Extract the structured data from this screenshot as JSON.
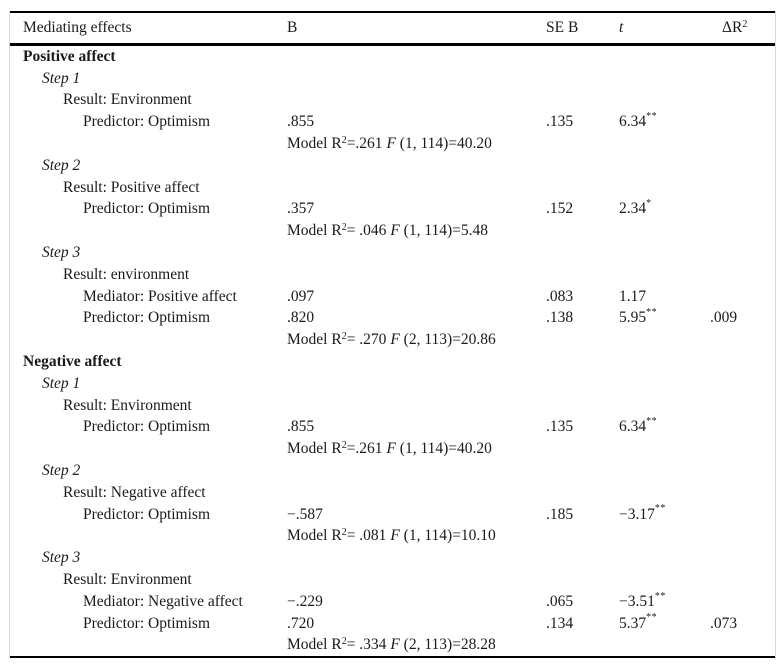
{
  "header": {
    "label": "Mediating effects",
    "b": "B",
    "se": "SE B",
    "t": "t",
    "dr2_base": "ΔR",
    "dr2_sup": "2"
  },
  "rows": [
    {
      "type": "section",
      "label": "Positive affect"
    },
    {
      "type": "step",
      "label": "Step 1"
    },
    {
      "type": "result",
      "label": "Result: Environment"
    },
    {
      "type": "data",
      "label": "Predictor: Optimism",
      "b": ".855",
      "se": ".135",
      "t": "6.34",
      "t_sup": "**",
      "dr2": ""
    },
    {
      "type": "model",
      "pre": "Model R",
      "sup": "2",
      "eq": "=.261 ",
      "f": "F",
      "tail": " (1, 114)=40.20"
    },
    {
      "type": "step",
      "label": "Step 2"
    },
    {
      "type": "result",
      "label": "Result: Positive affect"
    },
    {
      "type": "data",
      "label": "Predictor: Optimism",
      "b": ".357",
      "se": ".152",
      "t": "2.34",
      "t_sup": "*",
      "dr2": ""
    },
    {
      "type": "model",
      "pre": "Model R",
      "sup": "2",
      "eq": "= .046 ",
      "f": "F",
      "tail": " (1, 114)=5.48"
    },
    {
      "type": "step",
      "label": "Step 3"
    },
    {
      "type": "result",
      "label": "Result: environment"
    },
    {
      "type": "data",
      "label": "Mediator: Positive affect",
      "b": ".097",
      "se": ".083",
      "t": "1.17",
      "t_sup": "",
      "dr2": ""
    },
    {
      "type": "data",
      "label": "Predictor: Optimism",
      "b": ".820",
      "se": ".138",
      "t": "5.95",
      "t_sup": "**",
      "dr2": ".009"
    },
    {
      "type": "model",
      "pre": "Model R",
      "sup": "2",
      "eq": "= .270 ",
      "f": "F",
      "tail": " (2, 113)=20.86"
    },
    {
      "type": "section",
      "label": "Negative affect"
    },
    {
      "type": "step",
      "label": "Step 1"
    },
    {
      "type": "result",
      "label": "Result: Environment"
    },
    {
      "type": "data",
      "label": "Predictor: Optimism",
      "b": ".855",
      "se": ".135",
      "t": "6.34",
      "t_sup": "**",
      "dr2": ""
    },
    {
      "type": "model",
      "pre": "Model R",
      "sup": "2",
      "eq": "=.261 ",
      "f": "F",
      "tail": " (1, 114)=40.20"
    },
    {
      "type": "step",
      "label": "Step 2"
    },
    {
      "type": "result",
      "label": "Result: Negative affect"
    },
    {
      "type": "data",
      "label": "Predictor: Optimism",
      "b": "−.587",
      "se": ".185",
      "t": "−3.17",
      "t_sup": "**",
      "dr2": ""
    },
    {
      "type": "model",
      "pre": "Model R",
      "sup": "2",
      "eq": "= .081 ",
      "f": "F",
      "tail": " (1, 114)=10.10"
    },
    {
      "type": "step",
      "label": "Step 3"
    },
    {
      "type": "result",
      "label": "Result: Environment"
    },
    {
      "type": "data",
      "label": "Mediator: Negative affect",
      "b": "−.229",
      "se": ".065",
      "t": "−3.51",
      "t_sup": "**",
      "dr2": ""
    },
    {
      "type": "data",
      "label": "Predictor: Optimism",
      "b": ".720",
      "se": ".134",
      "t": "5.37",
      "t_sup": "**",
      "dr2": ".073"
    },
    {
      "type": "model",
      "pre": "Model R",
      "sup": "2",
      "eq": "= .334 ",
      "f": "F",
      "tail": " (2, 113)=28.28"
    }
  ],
  "colors": {
    "rule": "#000000",
    "frame": "#d9d9d9",
    "text": "#1a1a1a",
    "background": "#ffffff"
  }
}
